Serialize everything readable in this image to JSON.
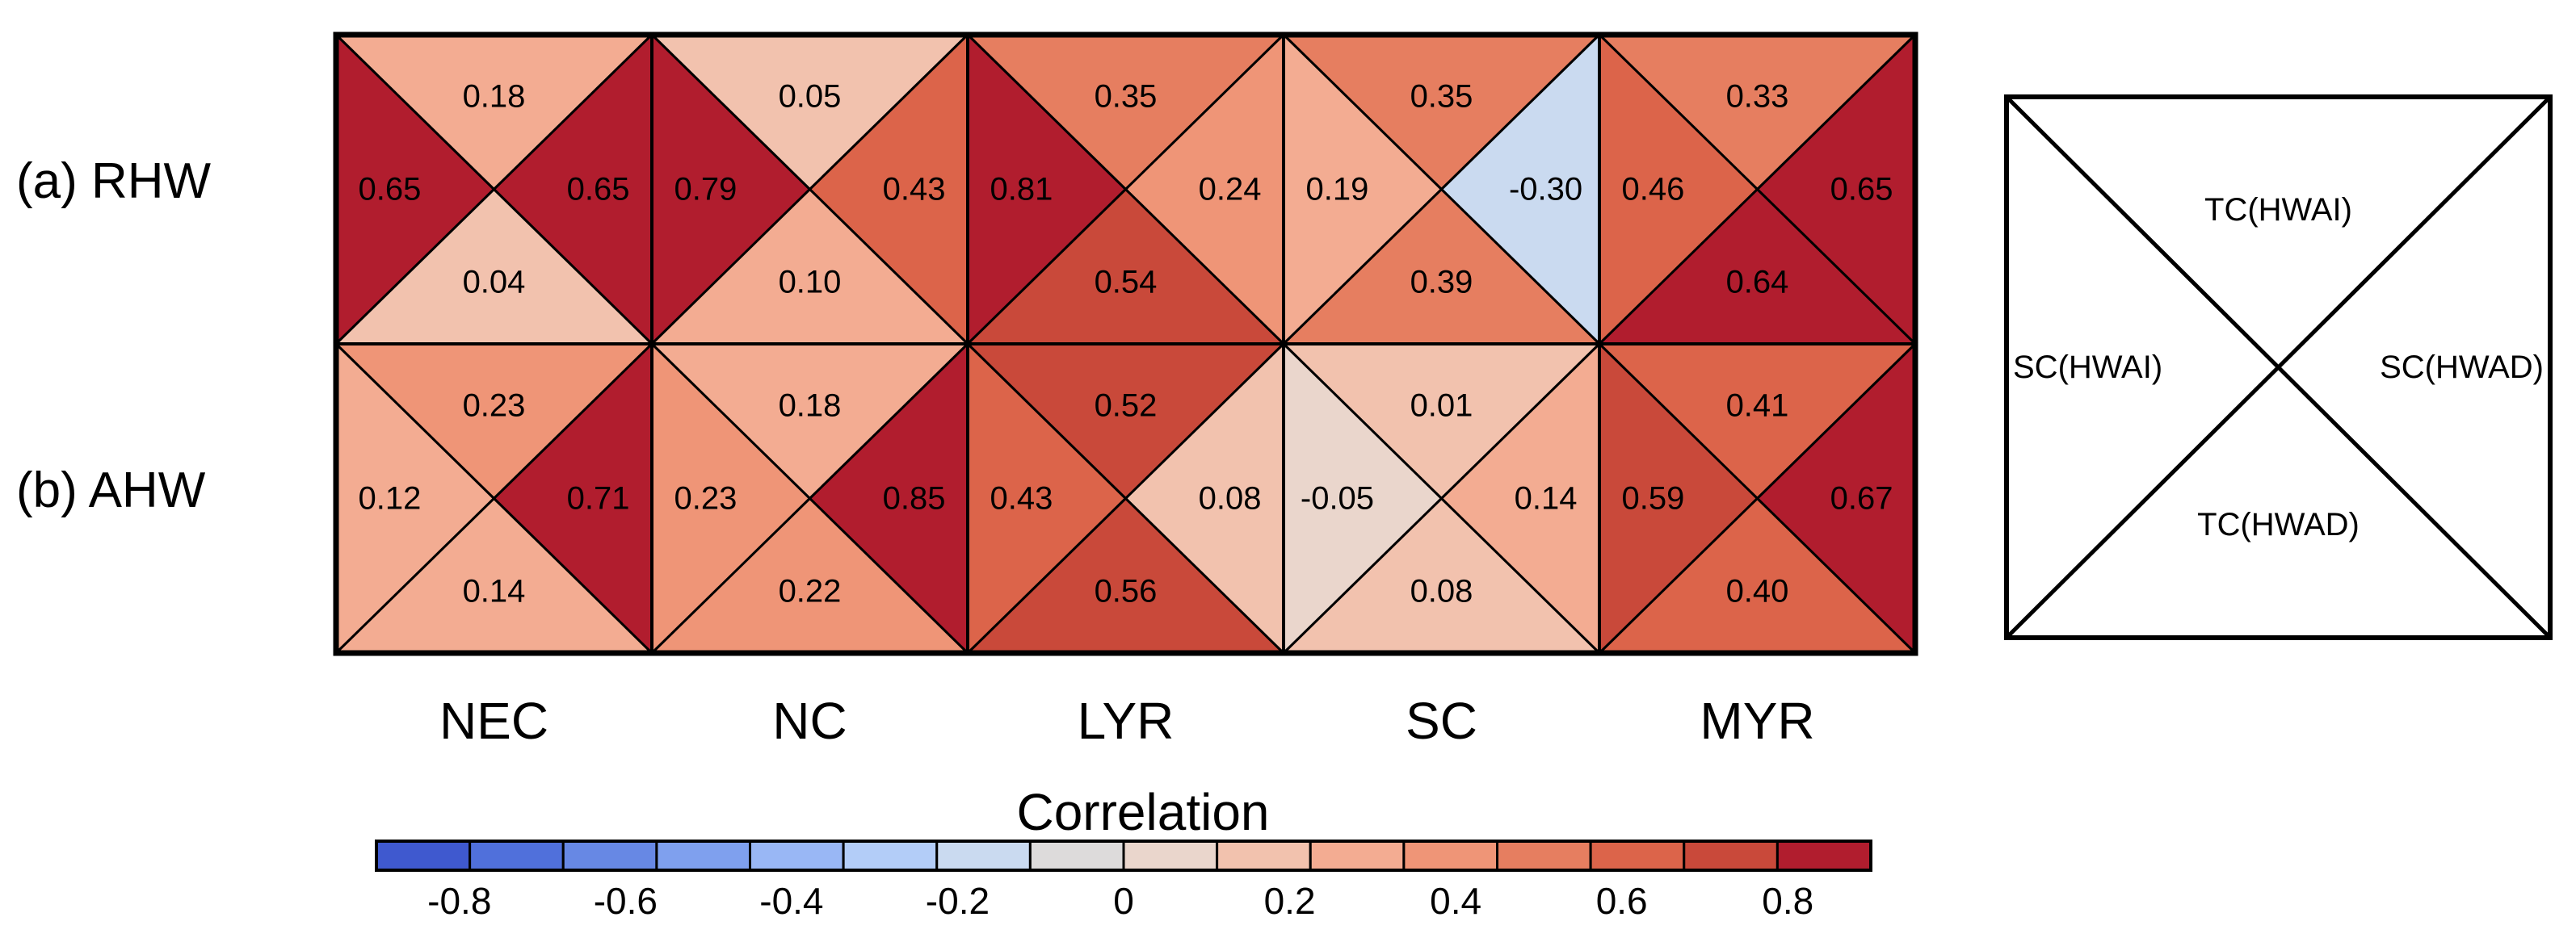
{
  "chart_data": {
    "type": "heatmap",
    "subtype": "four-triangle correlation grid",
    "rows": [
      "(a) RHW",
      "(b) AHW"
    ],
    "columns": [
      "NEC",
      "NC",
      "LYR",
      "SC",
      "MYR"
    ],
    "triangle_order": [
      "top",
      "left",
      "right",
      "bottom"
    ],
    "legend": {
      "top": "TC(HWAI)",
      "left": "SC(HWAI)",
      "right": "SC(HWAD)",
      "bottom": "TC(HWAD)"
    },
    "values": [
      [
        {
          "top": 0.18,
          "left": 0.65,
          "right": 0.65,
          "bottom": 0.04
        },
        {
          "top": 0.05,
          "left": 0.79,
          "right": 0.43,
          "bottom": 0.1
        },
        {
          "top": 0.35,
          "left": 0.81,
          "right": 0.24,
          "bottom": 0.54
        },
        {
          "top": 0.35,
          "left": 0.19,
          "right": -0.3,
          "bottom": 0.39
        },
        {
          "top": 0.33,
          "left": 0.46,
          "right": 0.65,
          "bottom": 0.64
        }
      ],
      [
        {
          "top": 0.23,
          "left": 0.12,
          "right": 0.71,
          "bottom": 0.14
        },
        {
          "top": 0.18,
          "left": 0.23,
          "right": 0.85,
          "bottom": 0.22
        },
        {
          "top": 0.52,
          "left": 0.43,
          "right": 0.08,
          "bottom": 0.56
        },
        {
          "top": 0.01,
          "left": -0.05,
          "right": 0.14,
          "bottom": 0.08
        },
        {
          "top": 0.41,
          "left": 0.59,
          "right": 0.67,
          "bottom": 0.4
        }
      ]
    ],
    "colorbar": {
      "title": "Correlation",
      "range": [
        -0.9,
        0.9
      ],
      "step": 0.1,
      "tick_values": [
        -0.8,
        -0.6,
        -0.4,
        -0.2,
        0,
        0.2,
        0.4,
        0.6,
        0.8
      ],
      "tick_labels": [
        "-0.8",
        "-0.6",
        "-0.4",
        "-0.2",
        "0",
        "0.2",
        "0.4",
        "0.6",
        "0.8"
      ],
      "colors": [
        "#3f59cf",
        "#5070db",
        "#6788e4",
        "#7fa0ee",
        "#99b7f5",
        "#b3cdf8",
        "#cadaf0",
        "#dddbdb",
        "#ead6cc",
        "#f2c2ae",
        "#f3ac92",
        "#ef9577",
        "#e67e60",
        "#dc644a",
        "#c9493a",
        "#b11d2e"
      ]
    }
  }
}
